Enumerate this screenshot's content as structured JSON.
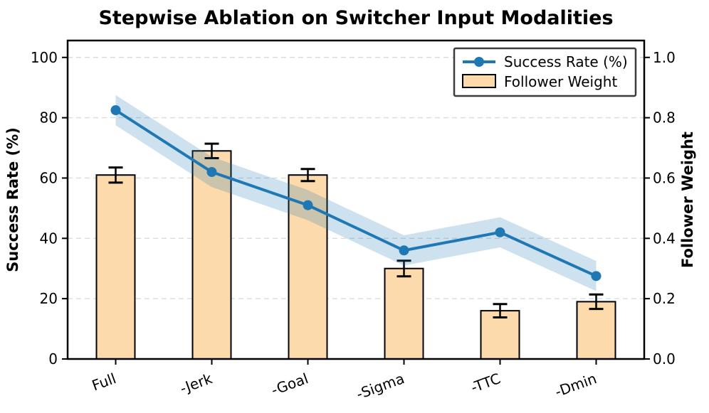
{
  "chart_data": {
    "type": "line+bar",
    "title": "Stepwise Ablation on Switcher Input Modalities",
    "categories": [
      "Full",
      "-Jerk",
      "-Goal",
      "-Sigma",
      "-TTC",
      "-Dmin"
    ],
    "series": [
      {
        "name": "Success Rate (%)",
        "type": "line",
        "axis": "left",
        "values": [
          82.5,
          62,
          51,
          36,
          42,
          27.5
        ],
        "band_halfwidth": 5,
        "color": "#1f77b4",
        "band_opacity": 0.22
      },
      {
        "name": "Follower Weight",
        "type": "bar",
        "axis": "right",
        "values": [
          0.61,
          0.69,
          0.61,
          0.3,
          0.16,
          0.19
        ],
        "errors": [
          0.025,
          0.024,
          0.02,
          0.026,
          0.022,
          0.024
        ],
        "fill": "#fcdaab",
        "edge": "#000000"
      }
    ],
    "xlabel": "",
    "ylabel_left": "Success Rate (%)",
    "ylabel_right": "Follower Weight",
    "yticks_left": [
      0,
      20,
      40,
      60,
      80,
      100
    ],
    "yticks_right": [
      0.0,
      0.2,
      0.4,
      0.6,
      0.8,
      1.0
    ],
    "ylim_left": [
      0,
      105.6
    ],
    "ylim_right": [
      0,
      1.056
    ],
    "grid": "horizontal-dashed",
    "legend_position": "upper-right",
    "x_tick_rotation_deg": 20
  }
}
